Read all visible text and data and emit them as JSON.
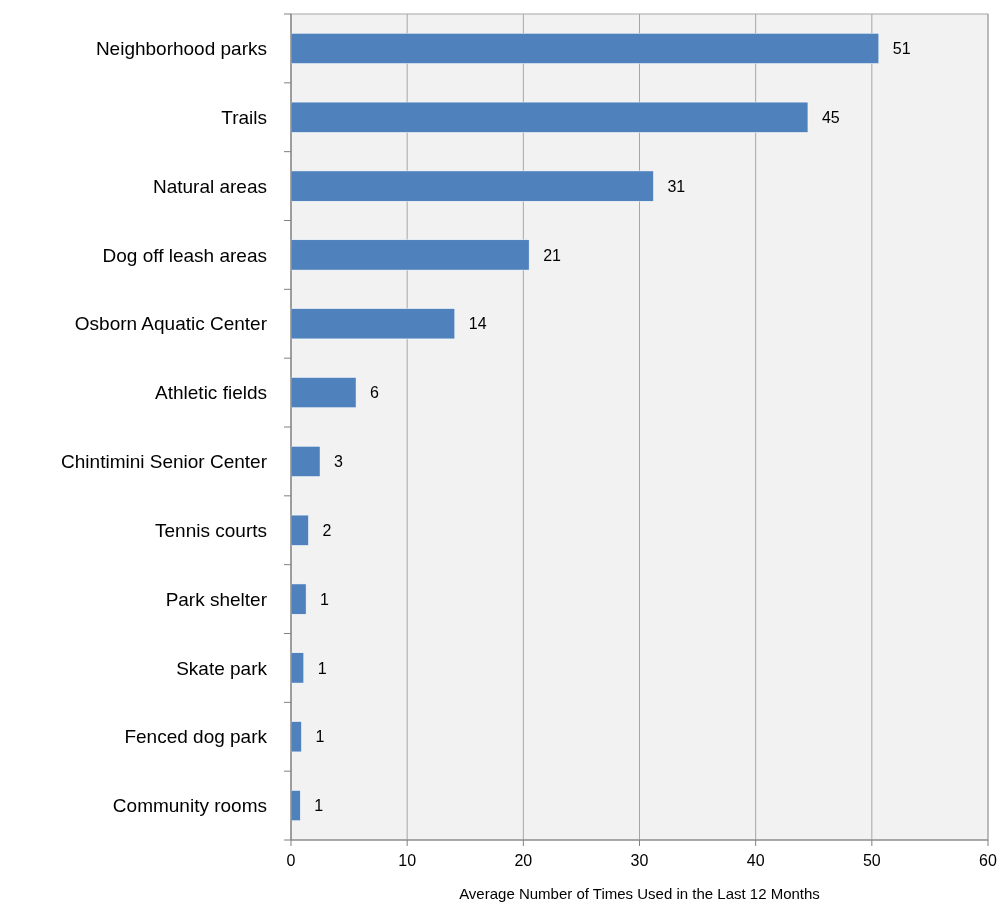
{
  "chart_data": {
    "type": "bar",
    "orientation": "horizontal",
    "xlabel": "Average Number of Times Used in the Last 12 Months",
    "categories": [
      "Neighborhood parks",
      "Trails",
      "Natural areas",
      "Dog off leash areas",
      "Osborn Aquatic Center",
      "Athletic fields",
      "Chintimini Senior Center",
      "Tennis courts",
      "Park shelter",
      "Skate park",
      "Fenced dog park",
      "Community rooms"
    ],
    "values": [
      50.6,
      44.5,
      31.2,
      20.5,
      14.1,
      5.6,
      2.5,
      1.5,
      1.3,
      1.1,
      0.9,
      0.8
    ],
    "value_labels": [
      "51",
      "45",
      "31",
      "21",
      "14",
      "6",
      "3",
      "2",
      "1",
      "1",
      "1",
      "1"
    ],
    "color": "#4f81bd",
    "xlim": [
      0,
      60
    ],
    "xticks": [
      0,
      10,
      20,
      30,
      40,
      50,
      60
    ],
    "grid": "x"
  }
}
